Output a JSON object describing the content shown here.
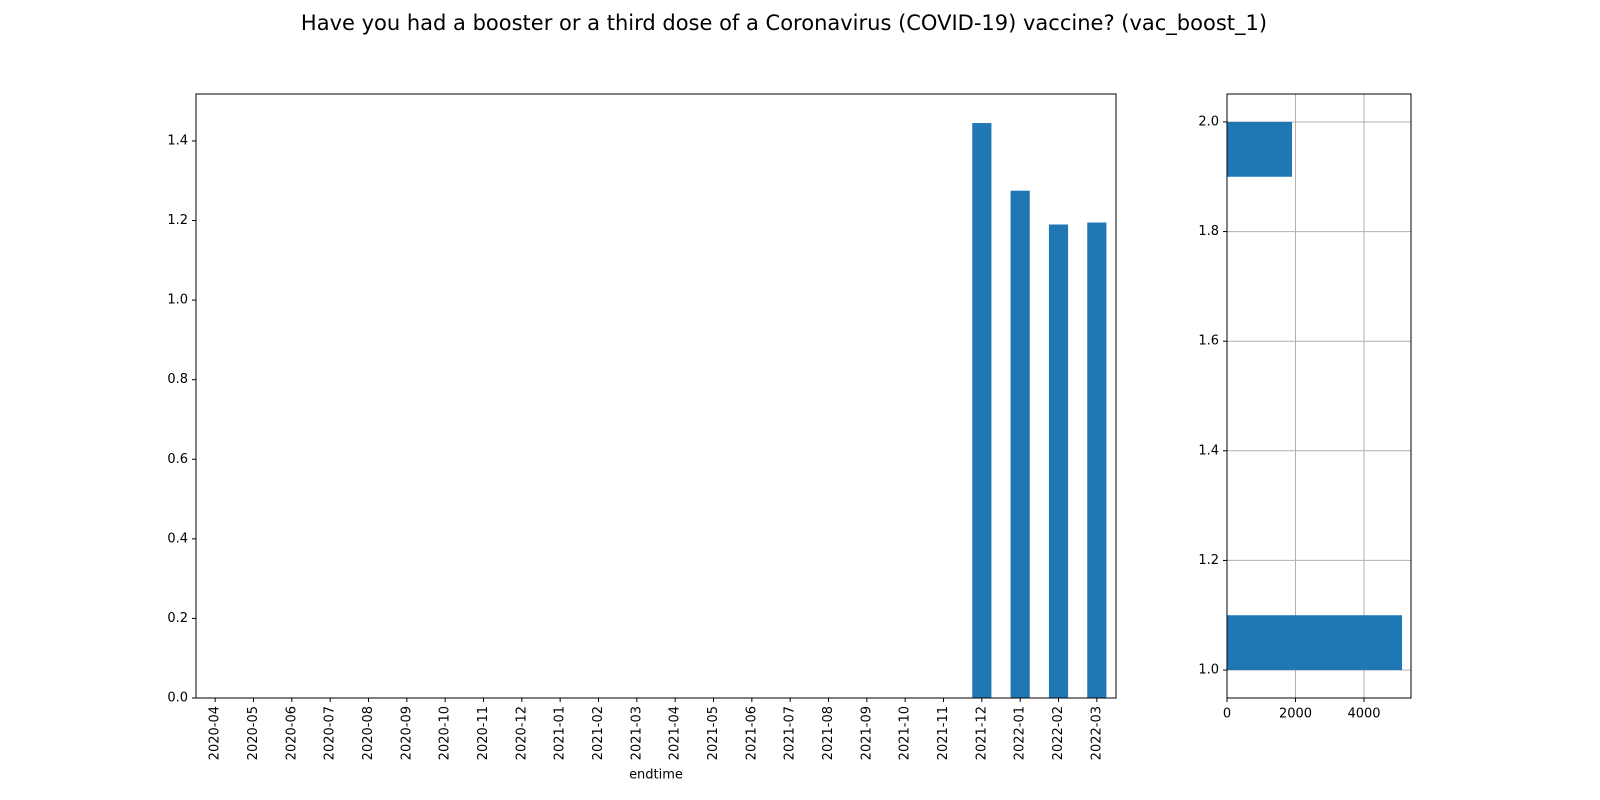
{
  "title": "Have you had a booster or a third dose of a Coronavirus (COVID-19) vaccine? (vac_boost_1)",
  "chart_data": [
    {
      "type": "bar",
      "x_label": "endtime",
      "color": "#1f77b4",
      "grid": false,
      "categories": [
        "2020-04",
        "2020-05",
        "2020-06",
        "2020-07",
        "2020-08",
        "2020-09",
        "2020-10",
        "2020-11",
        "2020-12",
        "2021-01",
        "2021-02",
        "2021-03",
        "2021-04",
        "2021-05",
        "2021-06",
        "2021-07",
        "2021-08",
        "2021-09",
        "2021-10",
        "2021-11",
        "2021-12",
        "2022-01",
        "2022-02",
        "2022-03"
      ],
      "values": [
        null,
        null,
        null,
        null,
        null,
        null,
        null,
        null,
        null,
        null,
        null,
        null,
        null,
        null,
        null,
        null,
        null,
        null,
        null,
        null,
        1.445,
        1.275,
        1.19,
        1.195
      ],
      "ylim": [
        0,
        1.518
      ],
      "yticks": [
        {
          "value": 0,
          "label": "0.0"
        },
        {
          "value": 0.2,
          "label": "0.2"
        },
        {
          "value": 0.4,
          "label": "0.4"
        },
        {
          "value": 0.6,
          "label": "0.6"
        },
        {
          "value": 0.8,
          "label": "0.8"
        },
        {
          "value": 1,
          "label": "1.0"
        },
        {
          "value": 1.2,
          "label": "1.2"
        },
        {
          "value": 1.4,
          "label": "1.4"
        }
      ]
    },
    {
      "type": "histogram",
      "orientation": "horizontal",
      "color": "#1f77b4",
      "grid": true,
      "bins": [
        1.0,
        1.1,
        1.2,
        1.3,
        1.4,
        1.5,
        1.6,
        1.7,
        1.8,
        1.9,
        2.0
      ],
      "values": [
        5110,
        0,
        0,
        0,
        0,
        0,
        0,
        0,
        0,
        1898
      ],
      "xlim": [
        0,
        5372
      ],
      "xticks": [
        0,
        2000,
        4000
      ],
      "ylim": [
        0.949,
        2.051
      ],
      "yticks": [
        {
          "value": 1,
          "label": "1.0"
        },
        {
          "value": 1.2,
          "label": "1.2"
        },
        {
          "value": 1.4,
          "label": "1.4"
        },
        {
          "value": 1.6,
          "label": "1.6"
        },
        {
          "value": 1.8,
          "label": "1.8"
        },
        {
          "value": 2,
          "label": "2.0"
        }
      ]
    }
  ]
}
